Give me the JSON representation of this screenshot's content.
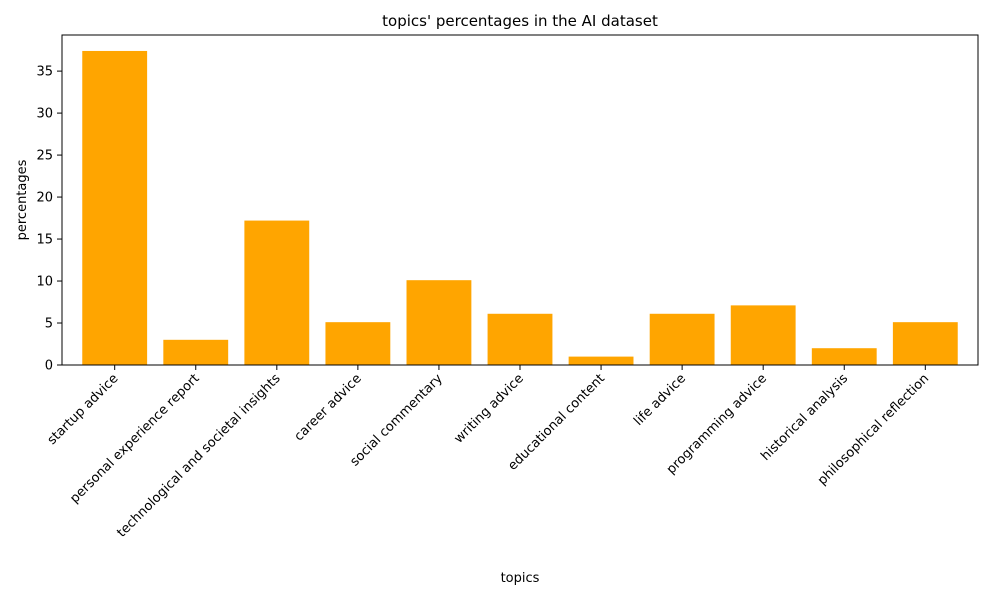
{
  "chart_data": {
    "type": "bar",
    "title": "topics' percentages in the AI dataset",
    "xlabel": "topics",
    "ylabel": "percentages",
    "categories": [
      "startup advice",
      "personal experience report",
      "technological and societal insights",
      "career advice",
      "social commentary",
      "writing advice",
      "educational content",
      "life advice",
      "programming advice",
      "historical analysis",
      "philosophical reflection"
    ],
    "values": [
      37.4,
      3.0,
      17.2,
      5.1,
      10.1,
      6.1,
      1.0,
      6.1,
      7.1,
      2.0,
      5.1
    ],
    "yticks": [
      0,
      5,
      10,
      15,
      20,
      25,
      30,
      35
    ],
    "ylim": [
      0,
      39.3
    ],
    "bar_color": "#ffa500",
    "xtick_rotation_deg": 45,
    "grid": false
  }
}
